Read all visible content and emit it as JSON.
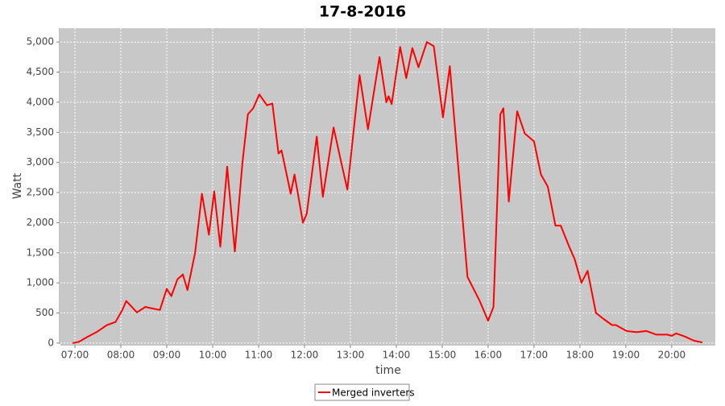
{
  "chart_data": {
    "type": "line",
    "title": "17-8-2016",
    "x_label": "time",
    "y_label": "Watt",
    "x": [
      "06:57",
      "07:05",
      "07:16",
      "07:28",
      "07:42",
      "07:53",
      "08:02",
      "08:07",
      "08:21",
      "08:32",
      "08:39",
      "08:51",
      "09:00",
      "09:06",
      "09:14",
      "09:21",
      "09:27",
      "09:37",
      "09:46",
      "09:55",
      "10:02",
      "10:10",
      "10:19",
      "10:29",
      "10:39",
      "10:46",
      "10:53",
      "11:01",
      "11:11",
      "11:18",
      "11:26",
      "11:30",
      "11:42",
      "11:47",
      "11:58",
      "12:03",
      "12:16",
      "12:24",
      "12:38",
      "12:48",
      "12:56",
      "13:12",
      "13:23",
      "13:38",
      "13:47",
      "13:50",
      "13:54",
      "14:05",
      "14:13",
      "14:21",
      "14:29",
      "14:40",
      "14:49",
      "15:01",
      "15:10",
      "15:33",
      "15:49",
      "16:00",
      "16:07",
      "16:16",
      "16:20",
      "16:27",
      "16:38",
      "16:48",
      "17:00",
      "17:09",
      "17:18",
      "17:28",
      "17:35",
      "17:46",
      "17:53",
      "18:02",
      "18:10",
      "18:21",
      "18:31",
      "18:42",
      "18:47",
      "19:01",
      "19:14",
      "19:27",
      "19:40",
      "19:54",
      "20:00",
      "20:06",
      "20:17",
      "20:29",
      "20:40"
    ],
    "series": [
      {
        "name": "Merged inverters",
        "color": "#ff0000",
        "values": [
          0,
          20,
          100,
          180,
          300,
          350,
          550,
          700,
          510,
          600,
          580,
          550,
          900,
          780,
          1060,
          1140,
          880,
          1500,
          2480,
          1800,
          2520,
          1600,
          2930,
          1520,
          3000,
          3800,
          3900,
          4130,
          3950,
          3980,
          3150,
          3200,
          2480,
          2800,
          2000,
          2150,
          3430,
          2430,
          3580,
          3000,
          2550,
          4450,
          3550,
          4750,
          4000,
          4100,
          3970,
          4920,
          4400,
          4900,
          4580,
          5000,
          4930,
          3750,
          4600,
          1100,
          700,
          370,
          600,
          3800,
          3900,
          2350,
          3850,
          3480,
          3350,
          2800,
          2600,
          1950,
          1950,
          1600,
          1400,
          1000,
          1200,
          500,
          400,
          300,
          300,
          200,
          180,
          200,
          140,
          140,
          120,
          160,
          110,
          40,
          10
        ]
      }
    ],
    "xlim": [
      "06:41",
      "20:57"
    ],
    "xticks": [
      "07:00",
      "08:00",
      "09:00",
      "10:00",
      "11:00",
      "12:00",
      "13:00",
      "14:00",
      "15:00",
      "16:00",
      "17:00",
      "18:00",
      "19:00",
      "20:00"
    ],
    "ylim": [
      -15,
      5230
    ],
    "yticks": [
      0,
      500,
      {
        "value": 1000,
        "label": "1,000"
      },
      {
        "value": 1500,
        "label": "1,500"
      },
      {
        "value": 2000,
        "label": "2,000"
      },
      {
        "value": 2500,
        "label": "2,500"
      },
      {
        "value": 3000,
        "label": "3,000"
      },
      {
        "value": 3500,
        "label": "3,500"
      },
      {
        "value": 4000,
        "label": "4,000"
      },
      {
        "value": 4500,
        "label": "4,500"
      },
      {
        "value": 5000,
        "label": "5,000"
      }
    ],
    "grid": true,
    "legend_position": "bottom"
  }
}
